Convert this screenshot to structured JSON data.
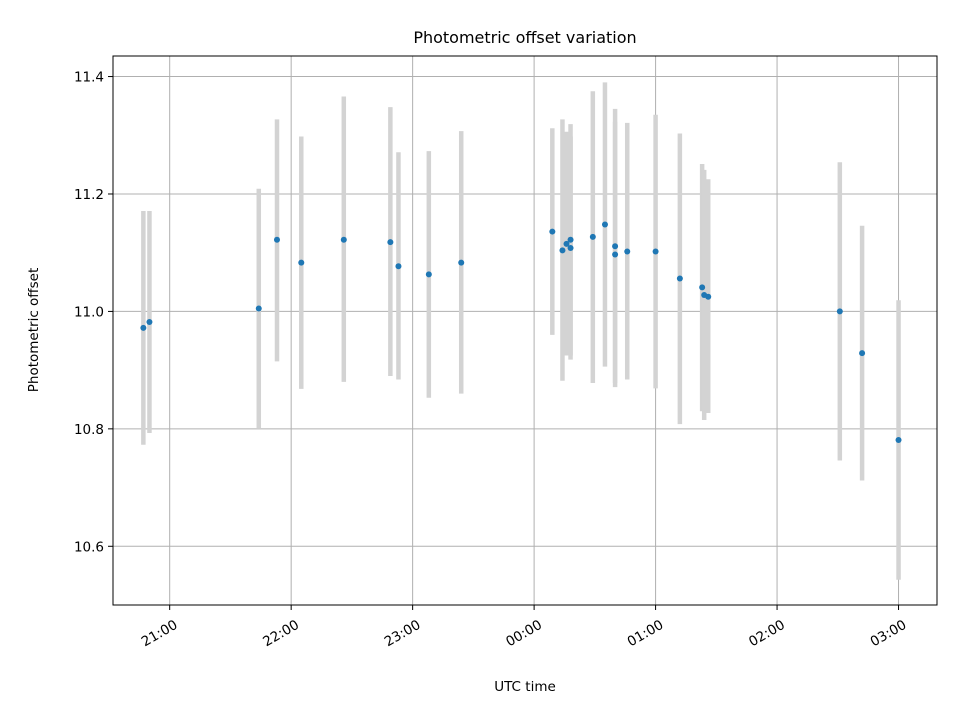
{
  "chart_data": {
    "type": "scatter",
    "title": "Photometric offset variation",
    "xlabel": "UTC time",
    "ylabel": "Photometric offset",
    "x_axis_kind": "time",
    "x_tick_labels": [
      "21:00",
      "22:00",
      "23:00",
      "00:00",
      "01:00",
      "02:00",
      "03:00"
    ],
    "y_tick_labels": [
      "10.6",
      "10.8",
      "11.0",
      "11.2",
      "11.4"
    ],
    "xlim": [
      "20:32",
      "03:19"
    ],
    "ylim": [
      10.5,
      11.435
    ],
    "grid": true,
    "marker_color": "#1f77b4",
    "errorbar_color": "#d3d3d3",
    "points": [
      {
        "t": "20:47",
        "y": 10.972,
        "lo": 10.773,
        "hi": 11.171
      },
      {
        "t": "20:50",
        "y": 10.982,
        "lo": 10.793,
        "hi": 11.171
      },
      {
        "t": "21:44",
        "y": 11.005,
        "lo": 10.8,
        "hi": 11.209
      },
      {
        "t": "21:53",
        "y": 11.122,
        "lo": 10.915,
        "hi": 11.327
      },
      {
        "t": "22:05",
        "y": 11.083,
        "lo": 10.868,
        "hi": 11.298
      },
      {
        "t": "22:26",
        "y": 11.122,
        "lo": 10.88,
        "hi": 11.366
      },
      {
        "t": "22:49",
        "y": 11.118,
        "lo": 10.89,
        "hi": 11.348
      },
      {
        "t": "22:53",
        "y": 11.077,
        "lo": 10.884,
        "hi": 11.271
      },
      {
        "t": "23:08",
        "y": 11.063,
        "lo": 10.853,
        "hi": 11.273
      },
      {
        "t": "23:24",
        "y": 11.083,
        "lo": 10.86,
        "hi": 11.307
      },
      {
        "t": "00:09",
        "y": 11.136,
        "lo": 10.96,
        "hi": 11.312
      },
      {
        "t": "00:14",
        "y": 11.104,
        "lo": 10.882,
        "hi": 11.327
      },
      {
        "t": "00:16",
        "y": 11.115,
        "lo": 10.925,
        "hi": 11.306
      },
      {
        "t": "00:18",
        "y": 11.122,
        "lo": 10.925,
        "hi": 11.319
      },
      {
        "t": "00:18",
        "y": 11.108,
        "lo": 10.918,
        "hi": 11.298
      },
      {
        "t": "00:29",
        "y": 11.127,
        "lo": 10.878,
        "hi": 11.375
      },
      {
        "t": "00:35",
        "y": 11.148,
        "lo": 10.906,
        "hi": 11.39
      },
      {
        "t": "00:40",
        "y": 11.111,
        "lo": 10.878,
        "hi": 11.345
      },
      {
        "t": "00:40",
        "y": 11.097,
        "lo": 10.871,
        "hi": 11.323
      },
      {
        "t": "00:46",
        "y": 11.102,
        "lo": 10.884,
        "hi": 11.321
      },
      {
        "t": "01:00",
        "y": 11.102,
        "lo": 10.869,
        "hi": 11.335
      },
      {
        "t": "01:12",
        "y": 11.056,
        "lo": 10.808,
        "hi": 11.303
      },
      {
        "t": "01:23",
        "y": 11.041,
        "lo": 10.83,
        "hi": 11.251
      },
      {
        "t": "01:24",
        "y": 11.028,
        "lo": 10.815,
        "hi": 11.241
      },
      {
        "t": "01:26",
        "y": 11.025,
        "lo": 10.827,
        "hi": 11.225
      },
      {
        "t": "02:31",
        "y": 11.0,
        "lo": 10.746,
        "hi": 11.254
      },
      {
        "t": "02:42",
        "y": 10.929,
        "lo": 10.712,
        "hi": 11.146
      },
      {
        "t": "03:00",
        "y": 10.781,
        "lo": 10.543,
        "hi": 11.019
      }
    ]
  }
}
